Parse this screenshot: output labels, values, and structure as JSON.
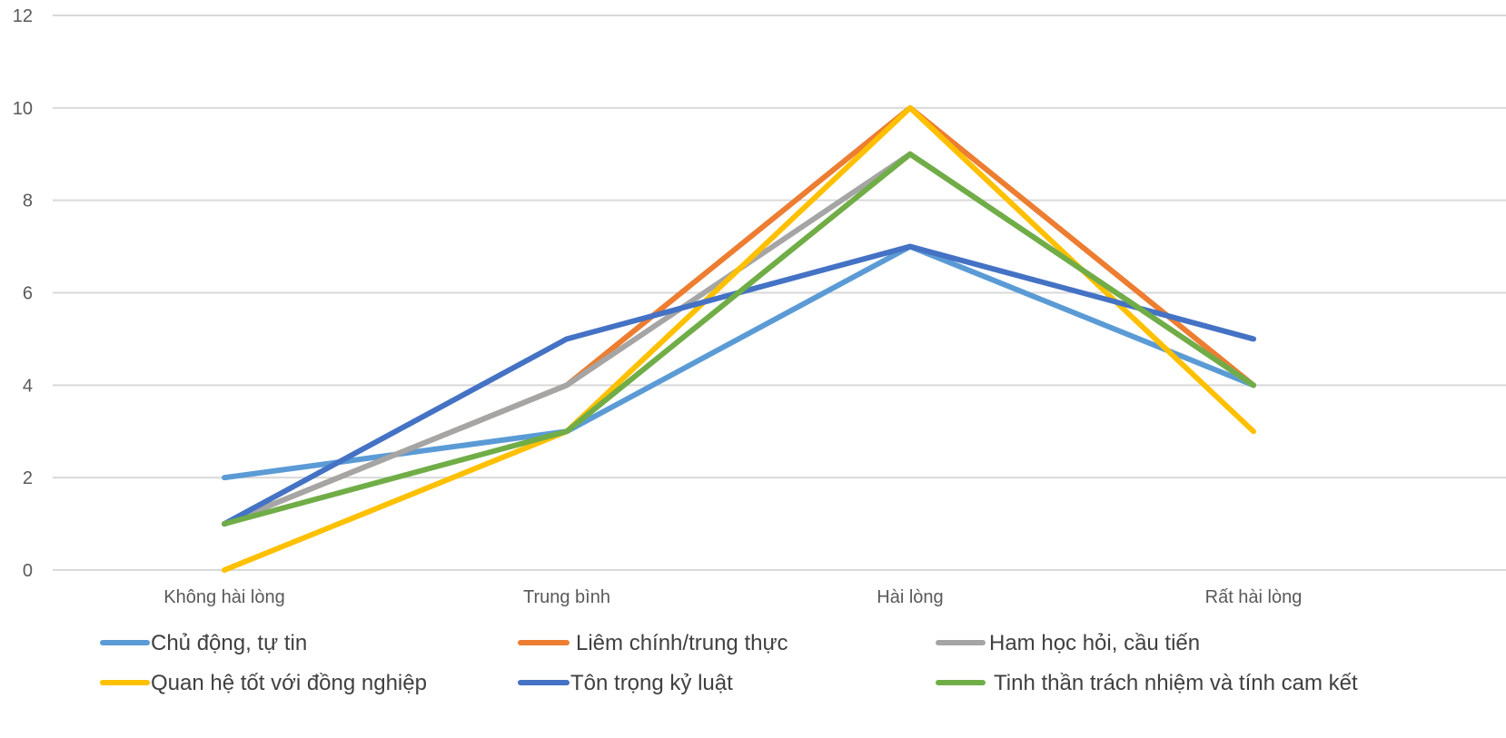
{
  "chart_data": {
    "type": "line",
    "title": "",
    "xlabel": "",
    "ylabel": "",
    "categories": [
      "Không hài lòng",
      "Trung bình",
      "Hài lòng",
      "Rất hài lòng"
    ],
    "ylim": [
      0,
      12
    ],
    "yticks": [
      0,
      2,
      4,
      6,
      8,
      10,
      12
    ],
    "grid": true,
    "legend_position": "bottom",
    "series": [
      {
        "name": "Chủ động, tự tin",
        "color": "#5B9BD5",
        "values": [
          2,
          3,
          7,
          4
        ]
      },
      {
        "name": "Liêm chính/trung thực",
        "color": "#ED7D31",
        "values": [
          1,
          4,
          10,
          4
        ]
      },
      {
        "name": "Ham học hỏi, cầu tiến",
        "color": "#A5A5A5",
        "values": [
          1,
          4,
          9,
          4
        ]
      },
      {
        "name": "Quan hệ tốt với đồng nghiệp",
        "color": "#FFC000",
        "values": [
          0,
          3,
          10,
          3
        ]
      },
      {
        "name": "Tôn trọng kỷ luật",
        "color": "#4472C4",
        "values": [
          1,
          5,
          7,
          5
        ]
      },
      {
        "name": "Tinh thần trách nhiệm và tính cam kết",
        "color": "#70AD47",
        "values": [
          1,
          3,
          9,
          4
        ]
      }
    ]
  }
}
